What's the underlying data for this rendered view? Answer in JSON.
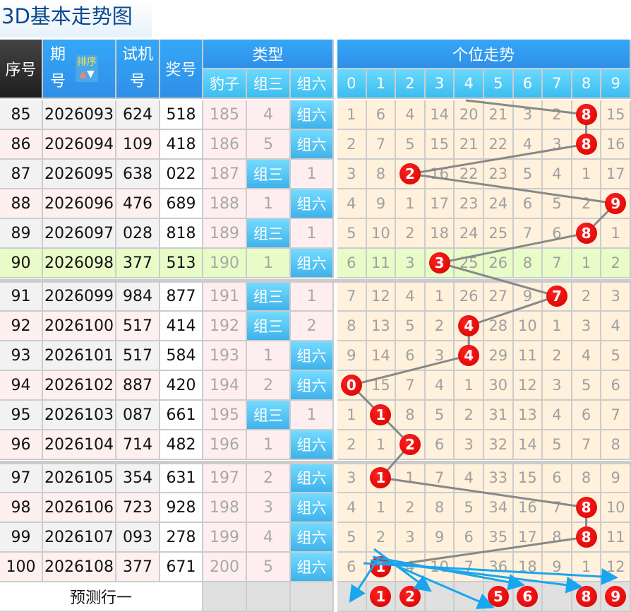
{
  "title": "3D基本走势图",
  "headers": {
    "seq": "序号",
    "period": "期\n号",
    "sort": "排序",
    "test": "试机\n号",
    "award": "奖号",
    "type": "类型",
    "baozi": "豹子",
    "zusan": "组三",
    "zuliu": "组六",
    "trend": "个位走势",
    "digits": [
      "0",
      "1",
      "2",
      "3",
      "4",
      "5",
      "6",
      "7",
      "8",
      "9"
    ]
  },
  "colors": {
    "ball": "#e00000",
    "header_blue": "#2f9bef",
    "highlight_row": "#e8fcc8",
    "trend_bg": "#fff1dc",
    "arrow": "#19a6ef"
  },
  "rows": [
    {
      "seq": "85",
      "period": "2026093",
      "test": "624",
      "award": "518",
      "baozi": "185",
      "zusan": "4",
      "zuliu": "组六",
      "trend": [
        "1",
        "6",
        "4",
        "14",
        "20",
        "21",
        "3",
        "2",
        "8",
        "15"
      ],
      "digit": 8
    },
    {
      "seq": "86",
      "period": "2026094",
      "test": "109",
      "award": "418",
      "baozi": "186",
      "zusan": "5",
      "zuliu": "组六",
      "trend": [
        "2",
        "7",
        "5",
        "15",
        "21",
        "22",
        "4",
        "3",
        "8",
        "16"
      ],
      "digit": 8
    },
    {
      "seq": "87",
      "period": "2026095",
      "test": "638",
      "award": "022",
      "baozi": "187",
      "zusan": "组三",
      "zuliu": "1",
      "trend": [
        "3",
        "8",
        "2",
        "16",
        "22",
        "23",
        "5",
        "4",
        "1",
        "17"
      ],
      "digit": 2
    },
    {
      "seq": "88",
      "period": "2026096",
      "test": "476",
      "award": "689",
      "baozi": "188",
      "zusan": "1",
      "zuliu": "组六",
      "trend": [
        "4",
        "9",
        "1",
        "17",
        "23",
        "24",
        "6",
        "5",
        "2",
        "9"
      ],
      "digit": 9
    },
    {
      "seq": "89",
      "period": "2026097",
      "test": "028",
      "award": "818",
      "baozi": "189",
      "zusan": "组三",
      "zuliu": "1",
      "trend": [
        "5",
        "10",
        "2",
        "18",
        "24",
        "25",
        "7",
        "6",
        "8",
        "1"
      ],
      "digit": 8
    },
    {
      "seq": "90",
      "period": "2026098",
      "test": "377",
      "award": "513",
      "baozi": "190",
      "zusan": "1",
      "zuliu": "组六",
      "trend": [
        "6",
        "11",
        "3",
        "3",
        "25",
        "26",
        "8",
        "7",
        "1",
        "2"
      ],
      "digit": 3,
      "highlight": true
    },
    {
      "seq": "91",
      "period": "2026099",
      "test": "984",
      "award": "877",
      "baozi": "191",
      "zusan": "组三",
      "zuliu": "1",
      "trend": [
        "7",
        "12",
        "4",
        "1",
        "26",
        "27",
        "9",
        "7",
        "2",
        "3"
      ],
      "digit": 7
    },
    {
      "seq": "92",
      "period": "2026100",
      "test": "517",
      "award": "414",
      "baozi": "192",
      "zusan": "组三",
      "zuliu": "2",
      "trend": [
        "8",
        "13",
        "5",
        "2",
        "4",
        "28",
        "10",
        "1",
        "3",
        "4"
      ],
      "digit": 4
    },
    {
      "seq": "93",
      "period": "2026101",
      "test": "517",
      "award": "584",
      "baozi": "193",
      "zusan": "1",
      "zuliu": "组六",
      "trend": [
        "9",
        "14",
        "6",
        "3",
        "4",
        "29",
        "11",
        "2",
        "4",
        "5"
      ],
      "digit": 4
    },
    {
      "seq": "94",
      "period": "2026102",
      "test": "887",
      "award": "420",
      "baozi": "194",
      "zusan": "2",
      "zuliu": "组六",
      "trend": [
        "0",
        "15",
        "7",
        "4",
        "1",
        "30",
        "12",
        "3",
        "5",
        "6"
      ],
      "digit": 0
    },
    {
      "seq": "95",
      "period": "2026103",
      "test": "087",
      "award": "661",
      "baozi": "195",
      "zusan": "组三",
      "zuliu": "1",
      "trend": [
        "1",
        "1",
        "8",
        "5",
        "2",
        "31",
        "13",
        "4",
        "6",
        "7"
      ],
      "digit": 1
    },
    {
      "seq": "96",
      "period": "2026104",
      "test": "714",
      "award": "482",
      "baozi": "196",
      "zusan": "1",
      "zuliu": "组六",
      "trend": [
        "2",
        "1",
        "2",
        "6",
        "3",
        "32",
        "14",
        "5",
        "7",
        "8"
      ],
      "digit": 2
    },
    {
      "seq": "97",
      "period": "2026105",
      "test": "354",
      "award": "631",
      "baozi": "197",
      "zusan": "2",
      "zuliu": "组六",
      "trend": [
        "3",
        "1",
        "1",
        "7",
        "4",
        "33",
        "15",
        "6",
        "8",
        "9"
      ],
      "digit": 1
    },
    {
      "seq": "98",
      "period": "2026106",
      "test": "723",
      "award": "928",
      "baozi": "198",
      "zusan": "3",
      "zuliu": "组六",
      "trend": [
        "4",
        "1",
        "2",
        "8",
        "5",
        "34",
        "16",
        "7",
        "8",
        "10"
      ],
      "digit": 8
    },
    {
      "seq": "99",
      "period": "2026107",
      "test": "093",
      "award": "278",
      "baozi": "199",
      "zusan": "4",
      "zuliu": "组六",
      "trend": [
        "5",
        "2",
        "3",
        "9",
        "6",
        "35",
        "17",
        "8",
        "8",
        "11"
      ],
      "digit": 8
    },
    {
      "seq": "100",
      "period": "2026108",
      "test": "377",
      "award": "671",
      "baozi": "200",
      "zusan": "5",
      "zuliu": "组六",
      "trend": [
        "6",
        "1",
        "4",
        "10",
        "7",
        "36",
        "18",
        "9",
        "1",
        "12"
      ],
      "digit": 1
    }
  ],
  "predict": {
    "label": "预测行一",
    "balls": [
      "1",
      "2",
      "5",
      "6",
      "8",
      "9"
    ]
  }
}
